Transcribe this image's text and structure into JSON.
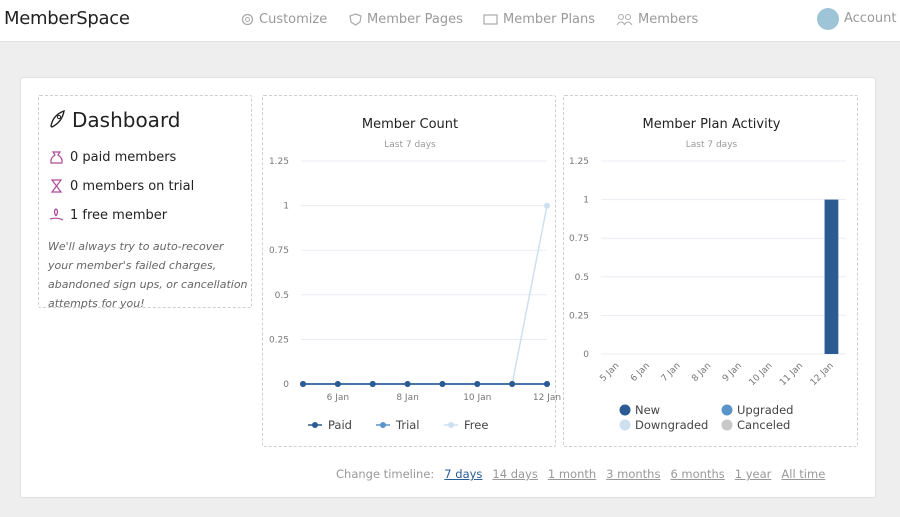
{
  "nav": {
    "logo": "MemberSpace",
    "items": [
      "Customize",
      "Member Pages",
      "Member Plans",
      "Members"
    ],
    "account": "Account"
  },
  "dashboard": {
    "title": "Dashboard",
    "stats": [
      "0 paid members",
      "0 members on trial",
      "1 free member"
    ],
    "note": "We'll always try to auto-recover your member's failed charges, abandoned sign ups, or cancellation attempts for you!"
  },
  "chart_data": [
    {
      "type": "line",
      "title": "Member Count",
      "subtitle": "Last 7 days",
      "categories": [
        null,
        "6 Jan",
        null,
        "8 Jan",
        null,
        "10 Jan",
        null,
        "12 Jan"
      ],
      "series": [
        {
          "name": "Paid",
          "color": "#2a5b93",
          "values": [
            0,
            0,
            0,
            0,
            0,
            0,
            0,
            0
          ]
        },
        {
          "name": "Trial",
          "color": "#5b94c8",
          "values": [
            0,
            0,
            0,
            0,
            0,
            0,
            0,
            0
          ]
        },
        {
          "name": "Free",
          "color": "#cde0f0",
          "values": [
            0,
            0,
            0,
            0,
            0,
            0,
            0,
            1
          ]
        }
      ],
      "ylim": [
        0,
        1.25
      ],
      "yticks": [
        0,
        0.25,
        0.5,
        0.75,
        1,
        1.25
      ],
      "grid": true
    },
    {
      "type": "bar",
      "title": "Member Plan Activity",
      "subtitle": "Last 7 days",
      "categories": [
        "5 Jan",
        "6 Jan",
        "7 Jan",
        "8 Jan",
        "9 Jan",
        "10 Jan",
        "11 Jan",
        "12 Jan"
      ],
      "series": [
        {
          "name": "New",
          "color": "#2a5b93",
          "values": [
            0,
            0,
            0,
            0,
            0,
            0,
            0,
            1
          ]
        },
        {
          "name": "Upgraded",
          "color": "#5b94c8",
          "values": [
            0,
            0,
            0,
            0,
            0,
            0,
            0,
            0
          ]
        },
        {
          "name": "Downgraded",
          "color": "#cde0f0",
          "values": [
            0,
            0,
            0,
            0,
            0,
            0,
            0,
            0
          ]
        },
        {
          "name": "Canceled",
          "color": "#c8c8c8",
          "values": [
            0,
            0,
            0,
            0,
            0,
            0,
            0,
            0
          ]
        }
      ],
      "ylim": [
        0,
        1.25
      ],
      "yticks": [
        0,
        0.25,
        0.5,
        0.75,
        1,
        1.25
      ],
      "grid": true
    }
  ],
  "timeline": {
    "label": "Change timeline:",
    "options": [
      "7 days",
      "14 days",
      "1 month",
      "3 months",
      "6 months",
      "1 year",
      "All time"
    ],
    "active_index": 0
  }
}
